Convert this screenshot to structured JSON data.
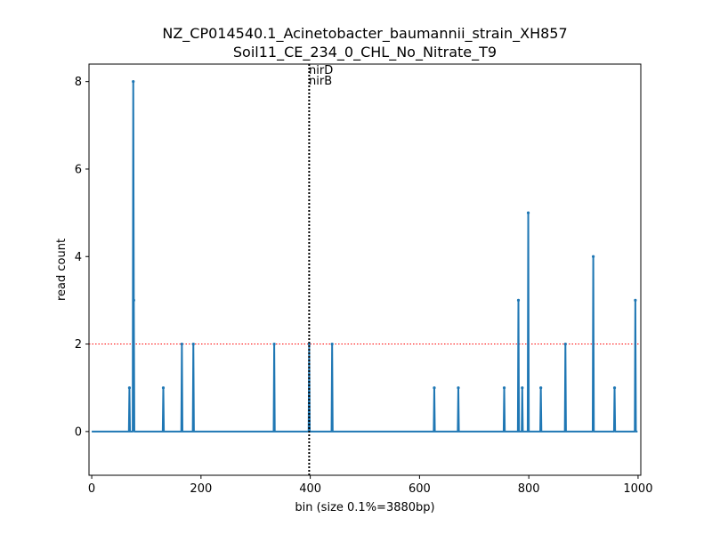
{
  "chart_data": {
    "type": "line",
    "title": [
      "NZ_CP014540.1_Acinetobacter_baumannii_strain_XH857",
      "Soil11_CE_234_0_CHL_No_Nitrate_T9"
    ],
    "xlabel": "bin (size 0.1%=3880bp)",
    "ylabel": "read count",
    "xlim": [
      -5,
      1005
    ],
    "ylim": [
      -1,
      8.4
    ],
    "xticks": [
      0,
      200,
      400,
      600,
      800,
      1000
    ],
    "yticks": [
      0,
      2,
      4,
      6,
      8
    ],
    "grid": false,
    "series_color": "#1f77b4",
    "threshold": {
      "y": 2,
      "color": "#ff0000",
      "style": "dotted"
    },
    "marker_line": {
      "x": 398,
      "color": "#000000",
      "style": "dotted"
    },
    "annotations": [
      "nirD",
      "nirB"
    ],
    "x_range": [
      0,
      999
    ],
    "baseline": 0,
    "peaks": [
      {
        "x": 69,
        "y": 1
      },
      {
        "x": 76,
        "y": 8
      },
      {
        "x": 77,
        "y": 3
      },
      {
        "x": 131,
        "y": 1
      },
      {
        "x": 165,
        "y": 2
      },
      {
        "x": 186,
        "y": 2
      },
      {
        "x": 334,
        "y": 2
      },
      {
        "x": 398,
        "y": 2
      },
      {
        "x": 440,
        "y": 2
      },
      {
        "x": 627,
        "y": 1
      },
      {
        "x": 671,
        "y": 1
      },
      {
        "x": 755,
        "y": 1
      },
      {
        "x": 781,
        "y": 3
      },
      {
        "x": 788,
        "y": 1
      },
      {
        "x": 799,
        "y": 5
      },
      {
        "x": 822,
        "y": 1
      },
      {
        "x": 867,
        "y": 2
      },
      {
        "x": 918,
        "y": 4
      },
      {
        "x": 957,
        "y": 1
      },
      {
        "x": 995,
        "y": 3
      }
    ]
  }
}
